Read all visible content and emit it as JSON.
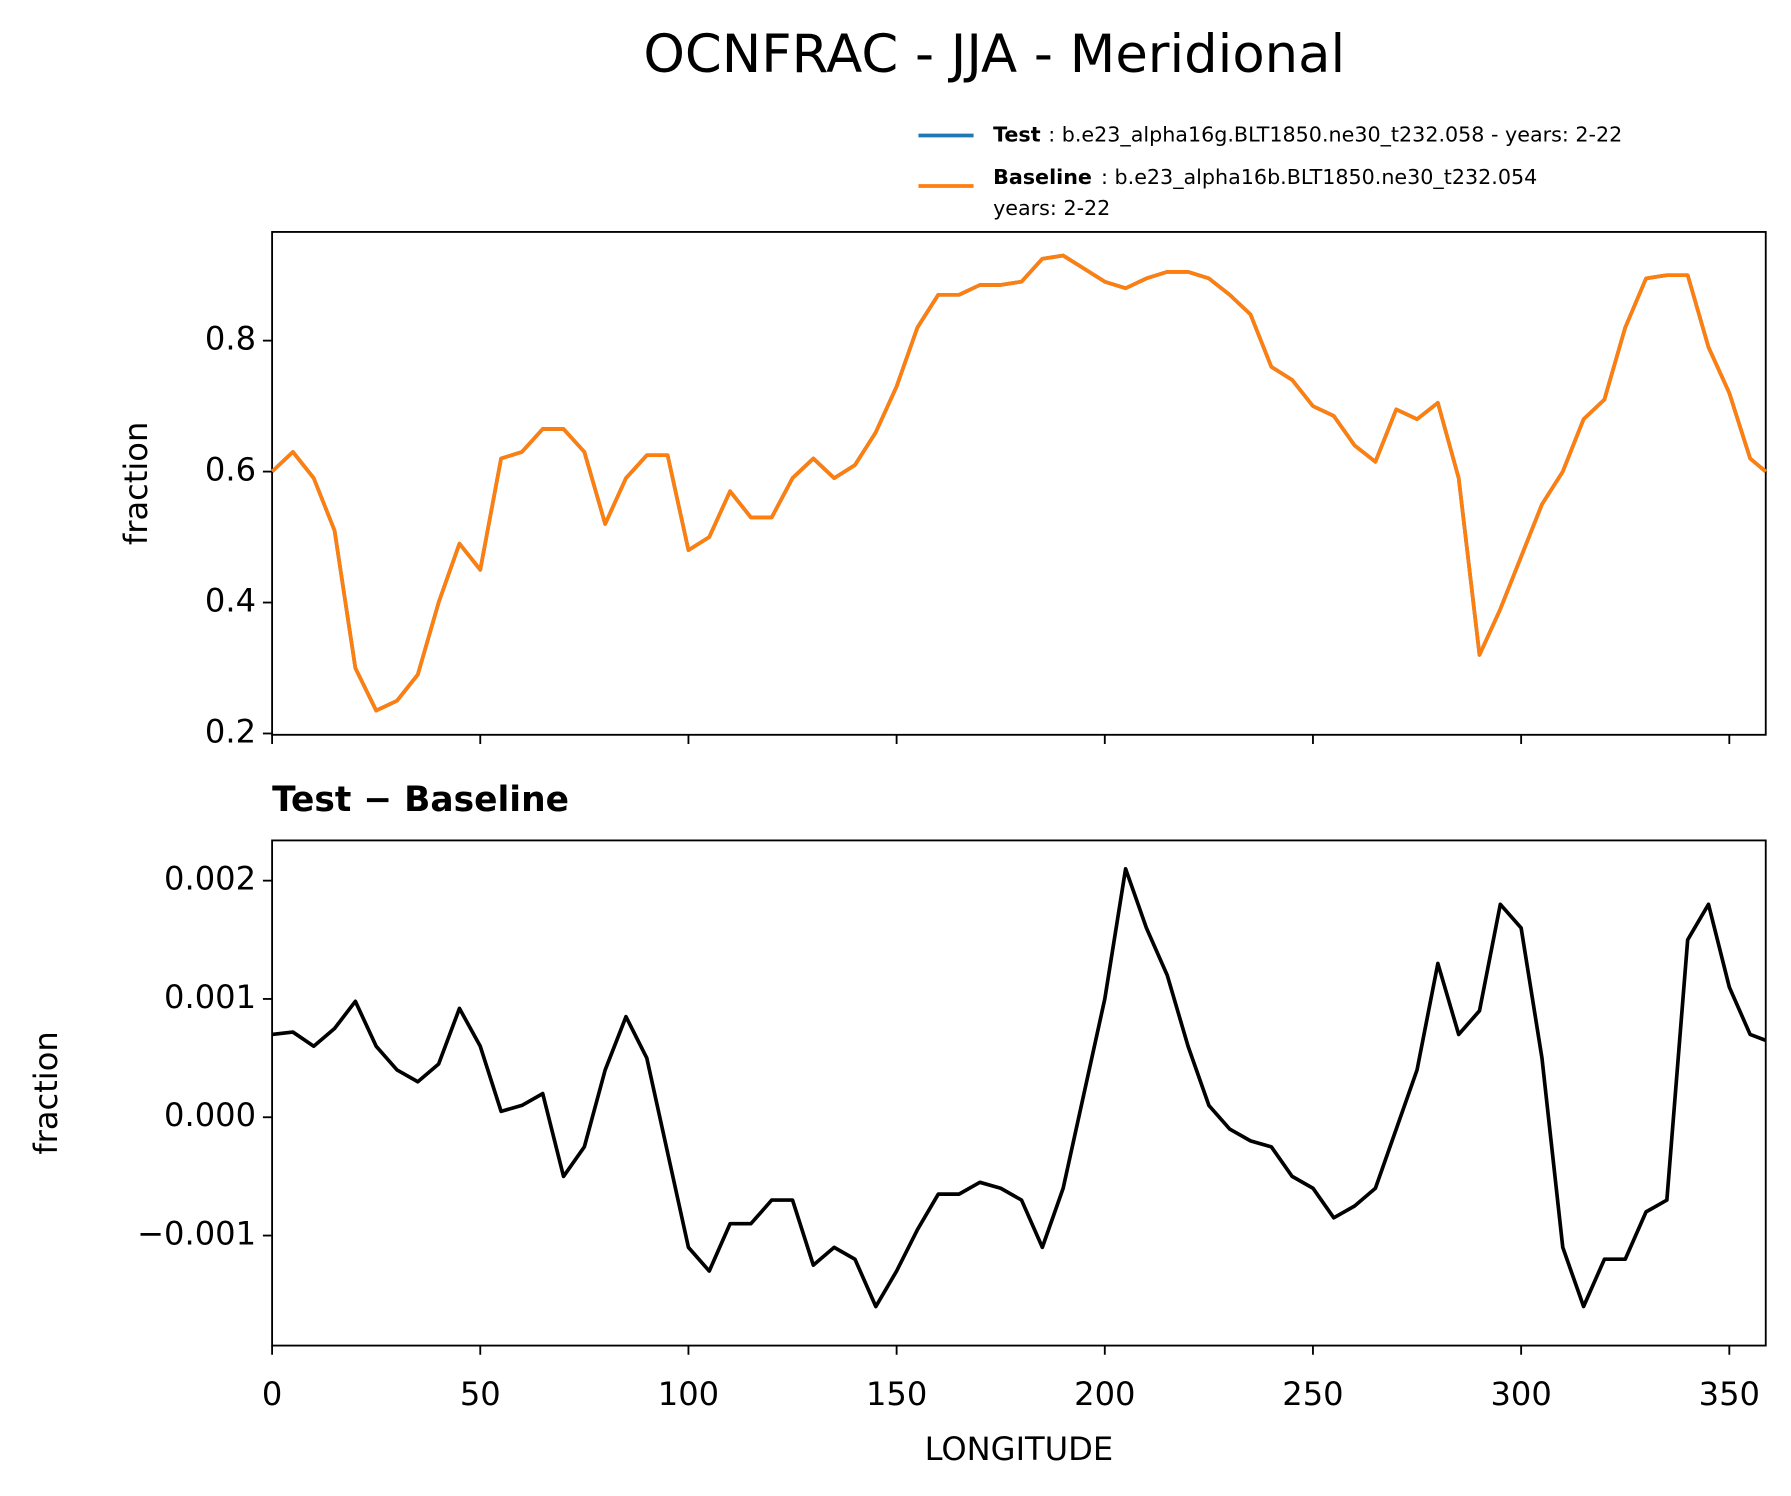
{
  "chart_data": [
    {
      "type": "line",
      "title": "OCNFRAC - JJA - Meridional",
      "ylabel": "fraction",
      "xticklabels": false,
      "x": [
        0,
        5,
        10,
        15,
        20,
        25,
        30,
        35,
        40,
        45,
        50,
        55,
        60,
        65,
        70,
        75,
        80,
        85,
        90,
        95,
        100,
        105,
        110,
        115,
        120,
        125,
        130,
        135,
        140,
        145,
        150,
        155,
        160,
        165,
        170,
        175,
        180,
        185,
        190,
        195,
        200,
        205,
        210,
        215,
        220,
        225,
        230,
        235,
        240,
        245,
        250,
        255,
        260,
        265,
        270,
        275,
        280,
        285,
        290,
        295,
        300,
        305,
        310,
        315,
        320,
        325,
        330,
        335,
        340,
        345,
        350,
        355,
        358.75
      ],
      "series": [
        {
          "name": "Test",
          "description": [
            ": b.e23_alpha16g.BLT1850.ne30_t232.058 - years: 2-22"
          ],
          "color": "#1f77b4",
          "values": [
            0.6,
            0.63,
            0.59,
            0.51,
            0.3,
            0.235,
            0.25,
            0.29,
            0.4,
            0.49,
            0.45,
            0.62,
            0.63,
            0.665,
            0.665,
            0.63,
            0.52,
            0.59,
            0.625,
            0.625,
            0.48,
            0.5,
            0.57,
            0.53,
            0.53,
            0.59,
            0.62,
            0.59,
            0.61,
            0.66,
            0.73,
            0.82,
            0.87,
            0.87,
            0.885,
            0.885,
            0.89,
            0.925,
            0.93,
            0.91,
            0.89,
            0.88,
            0.895,
            0.905,
            0.905,
            0.895,
            0.87,
            0.84,
            0.76,
            0.74,
            0.7,
            0.685,
            0.64,
            0.615,
            0.695,
            0.68,
            0.705,
            0.59,
            0.32,
            0.39,
            0.47,
            0.55,
            0.6,
            0.68,
            0.71,
            0.82,
            0.895,
            0.9,
            0.9,
            0.79,
            0.72,
            0.62,
            0.6
          ]
        },
        {
          "name": "Baseline",
          "description": [
            ": b.e23_alpha16b.BLT1850.ne30_t232.054",
            "years: 2-22"
          ],
          "color": "#ff7f0e",
          "values": [
            0.6,
            0.63,
            0.59,
            0.51,
            0.3,
            0.235,
            0.25,
            0.29,
            0.4,
            0.49,
            0.45,
            0.62,
            0.63,
            0.665,
            0.665,
            0.63,
            0.52,
            0.59,
            0.625,
            0.625,
            0.48,
            0.5,
            0.57,
            0.53,
            0.53,
            0.59,
            0.62,
            0.59,
            0.61,
            0.66,
            0.73,
            0.82,
            0.87,
            0.87,
            0.885,
            0.885,
            0.89,
            0.925,
            0.93,
            0.91,
            0.89,
            0.88,
            0.895,
            0.905,
            0.905,
            0.895,
            0.87,
            0.84,
            0.76,
            0.74,
            0.7,
            0.685,
            0.64,
            0.615,
            0.695,
            0.68,
            0.705,
            0.59,
            0.32,
            0.39,
            0.47,
            0.55,
            0.6,
            0.68,
            0.71,
            0.82,
            0.895,
            0.9,
            0.9,
            0.79,
            0.72,
            0.62,
            0.6
          ]
        }
      ],
      "xlim": [
        0,
        358.75
      ],
      "xticks": [
        0,
        50,
        100,
        150,
        200,
        250,
        300,
        350
      ],
      "ylim": [
        0.198,
        0.966
      ],
      "yticks": [
        0.2,
        0.4,
        0.6,
        0.8
      ]
    },
    {
      "type": "line",
      "title": "Test − Baseline",
      "xlabel": "LONGITUDE",
      "ylabel": "fraction",
      "xticklabels": true,
      "x": [
        0,
        5,
        10,
        15,
        20,
        25,
        30,
        35,
        40,
        45,
        50,
        55,
        60,
        65,
        70,
        75,
        80,
        85,
        90,
        95,
        100,
        105,
        110,
        115,
        120,
        125,
        130,
        135,
        140,
        145,
        150,
        155,
        160,
        165,
        170,
        175,
        180,
        185,
        190,
        195,
        200,
        205,
        210,
        215,
        220,
        225,
        230,
        235,
        240,
        245,
        250,
        255,
        260,
        265,
        270,
        275,
        280,
        285,
        290,
        295,
        300,
        305,
        310,
        315,
        320,
        325,
        330,
        335,
        340,
        345,
        350,
        355,
        358.75
      ],
      "series": [
        {
          "color": "#000000",
          "values": [
            0.0007,
            0.00072,
            0.0006,
            0.00075,
            0.00098,
            0.0006,
            0.0004,
            0.0003,
            0.00045,
            0.00092,
            0.0006,
            5e-05,
            0.0001,
            0.0002,
            -0.0005,
            -0.00025,
            0.0004,
            0.00085,
            0.0005,
            -0.0003,
            -0.0011,
            -0.0013,
            -0.0009,
            -0.0009,
            -0.0007,
            -0.0007,
            -0.00125,
            -0.0011,
            -0.0012,
            -0.0016,
            -0.0013,
            -0.00095,
            -0.00065,
            -0.00065,
            -0.00055,
            -0.0006,
            -0.0007,
            -0.0011,
            -0.0006,
            0.0002,
            0.001,
            0.0021,
            0.0016,
            0.0012,
            0.0006,
            0.0001,
            -0.0001,
            -0.0002,
            -0.00025,
            -0.0005,
            -0.0006,
            -0.00085,
            -0.00075,
            -0.0006,
            -0.0001,
            0.0004,
            0.0013,
            0.0007,
            0.0009,
            0.0018,
            0.0016,
            0.0005,
            -0.0011,
            -0.0016,
            -0.0012,
            -0.0012,
            -0.0008,
            -0.0007,
            0.0015,
            0.0018,
            0.0011,
            0.0007,
            0.00065
          ]
        }
      ],
      "xlim": [
        0,
        358.75
      ],
      "xticks": [
        0,
        50,
        100,
        150,
        200,
        250,
        300,
        350
      ],
      "ylim": [
        -0.00193,
        0.00234
      ],
      "yticks": [
        0.002,
        0.001,
        {
          "value": 0,
          "label": "0.000"
        },
        {
          "value": -0.001,
          "label": "−0.001"
        }
      ]
    }
  ]
}
